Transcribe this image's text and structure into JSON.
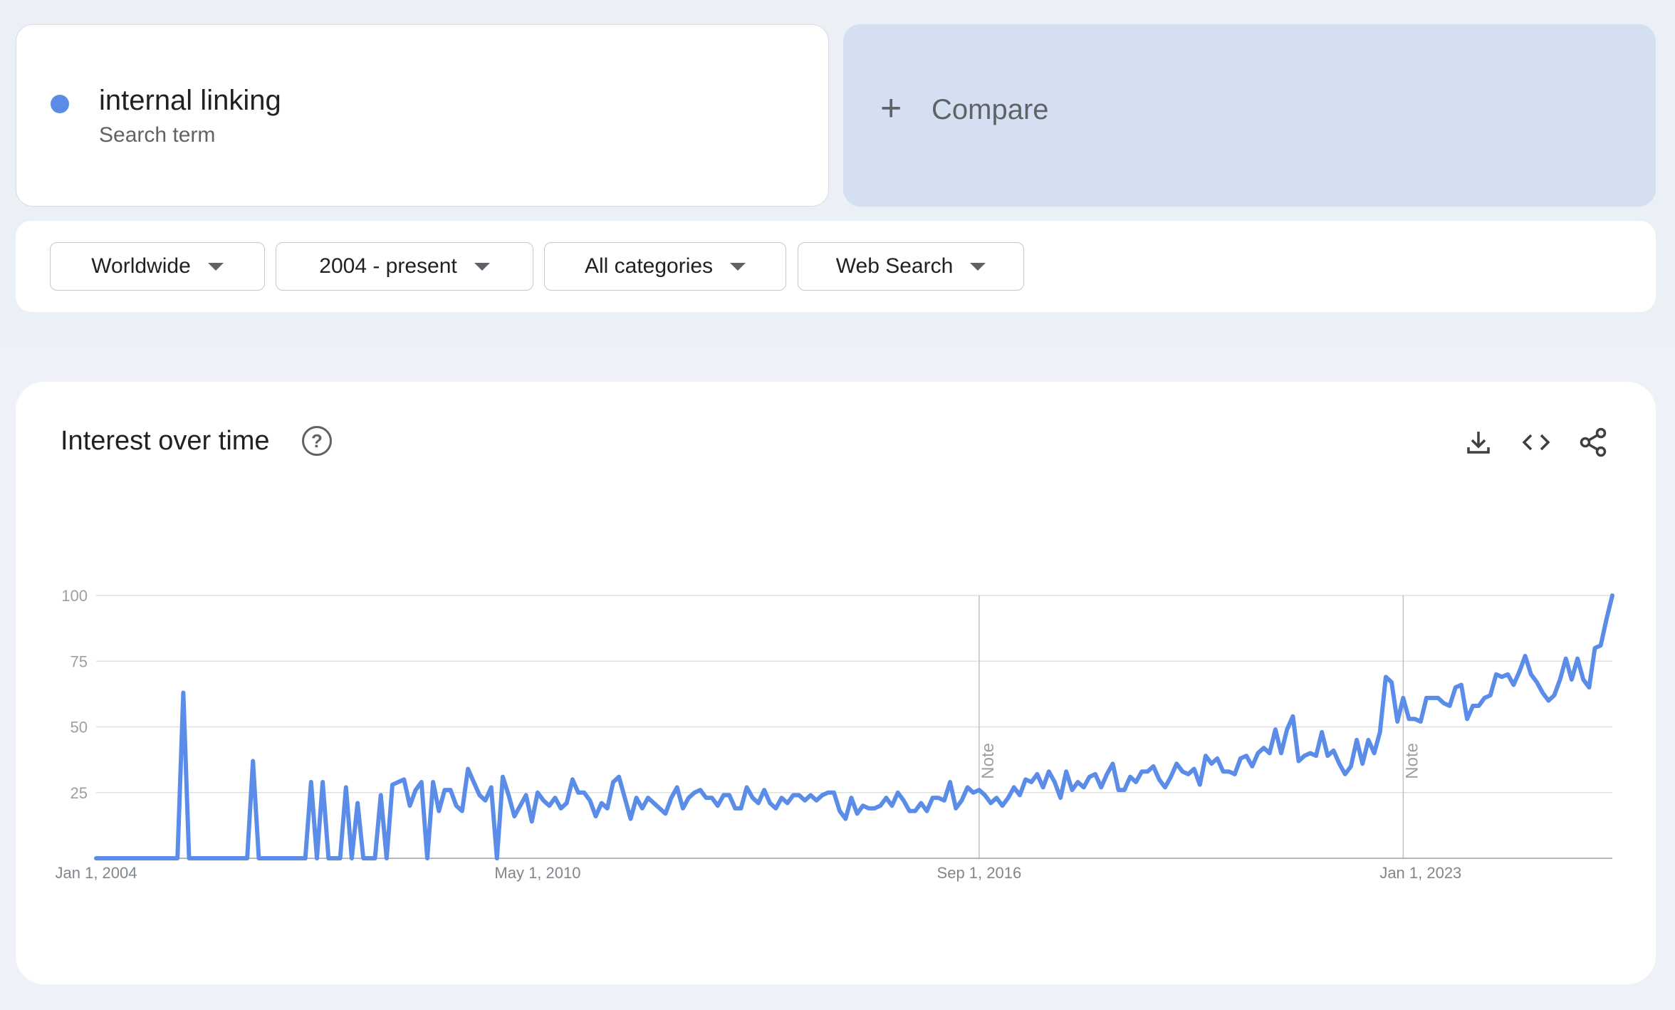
{
  "search_term": {
    "name": "internal linking",
    "type": "Search term",
    "color": "#5a8ce8"
  },
  "compare": {
    "label": "Compare"
  },
  "filters": {
    "region": "Worldwide",
    "time_range": "2004 - present",
    "category": "All categories",
    "search_type": "Web Search"
  },
  "chart_section": {
    "title": "Interest over time",
    "icons": [
      "help-icon",
      "download-icon",
      "embed-icon",
      "share-icon"
    ]
  },
  "chart_data": {
    "type": "line",
    "title": "",
    "xlabel": "",
    "ylabel": "",
    "x_range": [
      "2004-01",
      "2025-02"
    ],
    "ylim": [
      0,
      100
    ],
    "yticks": [
      25,
      50,
      75,
      100
    ],
    "xtick_labels": [
      "Jan 1, 2004",
      "May 1, 2010",
      "Sep 1, 2016",
      "Jan 1, 2023"
    ],
    "grid": true,
    "notes": [
      {
        "date": "2016-09",
        "label": "Note"
      },
      {
        "date": "2022-10",
        "label": "Note"
      }
    ],
    "series": [
      {
        "color": "#5a8ce8",
        "points": [
          [
            "2004-01",
            0
          ],
          [
            "2005-03",
            0
          ],
          [
            "2005-04",
            63
          ],
          [
            "2005-05",
            0
          ],
          [
            "2006-01",
            0
          ],
          [
            "2006-03",
            0
          ],
          [
            "2006-04",
            37
          ],
          [
            "2006-05",
            0
          ],
          [
            "2006-09",
            0
          ],
          [
            "2007-01",
            0
          ],
          [
            "2007-02",
            29
          ],
          [
            "2007-03",
            0
          ],
          [
            "2007-04",
            29
          ],
          [
            "2007-05",
            0
          ],
          [
            "2007-07",
            0
          ],
          [
            "2007-08",
            27
          ],
          [
            "2007-09",
            0
          ],
          [
            "2007-10",
            21
          ],
          [
            "2007-11",
            0
          ],
          [
            "2008-01",
            0
          ],
          [
            "2008-02",
            24
          ],
          [
            "2008-03",
            0
          ],
          [
            "2008-04",
            28
          ],
          [
            "2008-05",
            29
          ],
          [
            "2008-06",
            30
          ],
          [
            "2008-07",
            20
          ],
          [
            "2008-08",
            26
          ],
          [
            "2008-09",
            29
          ],
          [
            "2008-10",
            0
          ],
          [
            "2008-11",
            29
          ],
          [
            "2008-12",
            18
          ],
          [
            "2009-01",
            26
          ],
          [
            "2009-02",
            26
          ],
          [
            "2009-03",
            20
          ],
          [
            "2009-04",
            18
          ],
          [
            "2009-05",
            34
          ],
          [
            "2009-06",
            29
          ],
          [
            "2009-07",
            24
          ],
          [
            "2009-08",
            22
          ],
          [
            "2009-09",
            27
          ],
          [
            "2009-10",
            0
          ],
          [
            "2009-11",
            31
          ],
          [
            "2009-12",
            24
          ],
          [
            "2010-01",
            16
          ],
          [
            "2010-02",
            20
          ],
          [
            "2010-03",
            24
          ],
          [
            "2010-04",
            14
          ],
          [
            "2010-05",
            25
          ],
          [
            "2010-06",
            22
          ],
          [
            "2010-07",
            20
          ],
          [
            "2010-08",
            23
          ],
          [
            "2010-09",
            19
          ],
          [
            "2010-10",
            21
          ],
          [
            "2010-11",
            30
          ],
          [
            "2010-12",
            25
          ],
          [
            "2011-01",
            25
          ],
          [
            "2011-02",
            22
          ],
          [
            "2011-03",
            16
          ],
          [
            "2011-04",
            21
          ],
          [
            "2011-05",
            19
          ],
          [
            "2011-06",
            29
          ],
          [
            "2011-07",
            31
          ],
          [
            "2011-08",
            23
          ],
          [
            "2011-09",
            15
          ],
          [
            "2011-10",
            23
          ],
          [
            "2011-11",
            19
          ],
          [
            "2011-12",
            23
          ],
          [
            "2012-01",
            21
          ],
          [
            "2012-02",
            19
          ],
          [
            "2012-03",
            17
          ],
          [
            "2012-04",
            23
          ],
          [
            "2012-05",
            27
          ],
          [
            "2012-06",
            19
          ],
          [
            "2012-07",
            23
          ],
          [
            "2012-08",
            25
          ],
          [
            "2012-09",
            26
          ],
          [
            "2012-10",
            23
          ],
          [
            "2012-11",
            23
          ],
          [
            "2012-12",
            20
          ],
          [
            "2013-01",
            24
          ],
          [
            "2013-02",
            24
          ],
          [
            "2013-03",
            19
          ],
          [
            "2013-04",
            19
          ],
          [
            "2013-05",
            27
          ],
          [
            "2013-06",
            23
          ],
          [
            "2013-07",
            21
          ],
          [
            "2013-08",
            26
          ],
          [
            "2013-09",
            21
          ],
          [
            "2013-10",
            19
          ],
          [
            "2013-11",
            23
          ],
          [
            "2013-12",
            21
          ],
          [
            "2014-01",
            24
          ],
          [
            "2014-02",
            24
          ],
          [
            "2014-03",
            22
          ],
          [
            "2014-04",
            24
          ],
          [
            "2014-05",
            22
          ],
          [
            "2014-06",
            24
          ],
          [
            "2014-07",
            25
          ],
          [
            "2014-08",
            25
          ],
          [
            "2014-09",
            18
          ],
          [
            "2014-10",
            15
          ],
          [
            "2014-11",
            23
          ],
          [
            "2014-12",
            17
          ],
          [
            "2015-01",
            20
          ],
          [
            "2015-02",
            19
          ],
          [
            "2015-03",
            19
          ],
          [
            "2015-04",
            20
          ],
          [
            "2015-05",
            23
          ],
          [
            "2015-06",
            20
          ],
          [
            "2015-07",
            25
          ],
          [
            "2015-08",
            22
          ],
          [
            "2015-09",
            18
          ],
          [
            "2015-10",
            18
          ],
          [
            "2015-11",
            21
          ],
          [
            "2015-12",
            18
          ],
          [
            "2016-01",
            23
          ],
          [
            "2016-02",
            23
          ],
          [
            "2016-03",
            22
          ],
          [
            "2016-04",
            29
          ],
          [
            "2016-05",
            19
          ],
          [
            "2016-06",
            22
          ],
          [
            "2016-07",
            27
          ],
          [
            "2016-08",
            25
          ],
          [
            "2016-09",
            26
          ],
          [
            "2016-10",
            24
          ],
          [
            "2016-11",
            21
          ],
          [
            "2016-12",
            23
          ],
          [
            "2017-01",
            20
          ],
          [
            "2017-02",
            23
          ],
          [
            "2017-03",
            27
          ],
          [
            "2017-04",
            24
          ],
          [
            "2017-05",
            30
          ],
          [
            "2017-06",
            29
          ],
          [
            "2017-07",
            32
          ],
          [
            "2017-08",
            27
          ],
          [
            "2017-09",
            33
          ],
          [
            "2017-10",
            29
          ],
          [
            "2017-11",
            23
          ],
          [
            "2017-12",
            33
          ],
          [
            "2018-01",
            26
          ],
          [
            "2018-02",
            29
          ],
          [
            "2018-03",
            27
          ],
          [
            "2018-04",
            31
          ],
          [
            "2018-05",
            32
          ],
          [
            "2018-06",
            27
          ],
          [
            "2018-07",
            32
          ],
          [
            "2018-08",
            36
          ],
          [
            "2018-09",
            26
          ],
          [
            "2018-10",
            26
          ],
          [
            "2018-11",
            31
          ],
          [
            "2018-12",
            29
          ],
          [
            "2019-01",
            33
          ],
          [
            "2019-02",
            33
          ],
          [
            "2019-03",
            35
          ],
          [
            "2019-04",
            30
          ],
          [
            "2019-05",
            27
          ],
          [
            "2019-06",
            31
          ],
          [
            "2019-07",
            36
          ],
          [
            "2019-08",
            33
          ],
          [
            "2019-09",
            32
          ],
          [
            "2019-10",
            34
          ],
          [
            "2019-11",
            28
          ],
          [
            "2019-12",
            39
          ],
          [
            "2020-01",
            36
          ],
          [
            "2020-02",
            38
          ],
          [
            "2020-03",
            33
          ],
          [
            "2020-04",
            33
          ],
          [
            "2020-05",
            32
          ],
          [
            "2020-06",
            38
          ],
          [
            "2020-07",
            39
          ],
          [
            "2020-08",
            35
          ],
          [
            "2020-09",
            40
          ],
          [
            "2020-10",
            42
          ],
          [
            "2020-11",
            40
          ],
          [
            "2020-12",
            49
          ],
          [
            "2021-01",
            40
          ],
          [
            "2021-02",
            49
          ],
          [
            "2021-03",
            54
          ],
          [
            "2021-04",
            37
          ],
          [
            "2021-05",
            39
          ],
          [
            "2021-06",
            40
          ],
          [
            "2021-07",
            39
          ],
          [
            "2021-08",
            48
          ],
          [
            "2021-09",
            39
          ],
          [
            "2021-10",
            41
          ],
          [
            "2021-11",
            36
          ],
          [
            "2021-12",
            32
          ],
          [
            "2022-01",
            35
          ],
          [
            "2022-02",
            45
          ],
          [
            "2022-03",
            36
          ],
          [
            "2022-04",
            45
          ],
          [
            "2022-05",
            40
          ],
          [
            "2022-06",
            48
          ],
          [
            "2022-07",
            69
          ],
          [
            "2022-08",
            67
          ],
          [
            "2022-09",
            52
          ],
          [
            "2022-10",
            61
          ],
          [
            "2022-11",
            53
          ],
          [
            "2022-12",
            53
          ],
          [
            "2023-01",
            52
          ],
          [
            "2023-02",
            61
          ],
          [
            "2023-03",
            61
          ],
          [
            "2023-04",
            61
          ],
          [
            "2023-05",
            59
          ],
          [
            "2023-06",
            58
          ],
          [
            "2023-07",
            65
          ],
          [
            "2023-08",
            66
          ],
          [
            "2023-09",
            53
          ],
          [
            "2023-10",
            58
          ],
          [
            "2023-11",
            58
          ],
          [
            "2023-12",
            61
          ],
          [
            "2024-01",
            62
          ],
          [
            "2024-02",
            70
          ],
          [
            "2024-03",
            69
          ],
          [
            "2024-04",
            70
          ],
          [
            "2024-05",
            66
          ],
          [
            "2024-06",
            71
          ],
          [
            "2024-07",
            77
          ],
          [
            "2024-08",
            70
          ],
          [
            "2024-09",
            67
          ],
          [
            "2024-10",
            63
          ],
          [
            "2024-11",
            60
          ],
          [
            "2024-12",
            62
          ],
          [
            "2025-01",
            68
          ],
          [
            "2025-02",
            76
          ],
          [
            "2025-03",
            68
          ],
          [
            "2025-04",
            76
          ],
          [
            "2025-05",
            68
          ],
          [
            "2025-06",
            65
          ],
          [
            "2025-07",
            80
          ],
          [
            "2025-08",
            81
          ],
          [
            "2025-09",
            91
          ],
          [
            "2025-10",
            100
          ]
        ]
      }
    ]
  }
}
